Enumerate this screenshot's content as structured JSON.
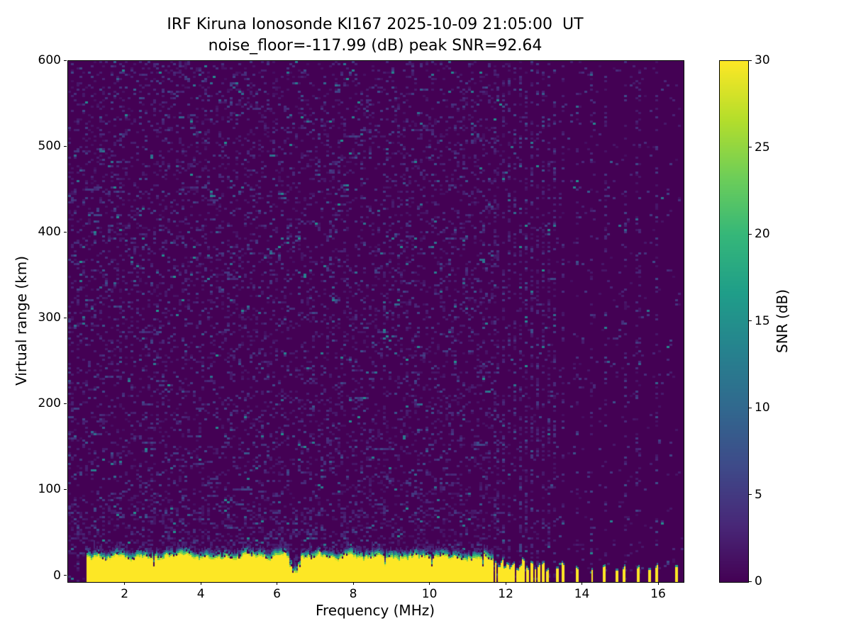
{
  "chart_data": {
    "type": "heatmap",
    "title": "IRF Kiruna Ionosonde KI167 2025-10-09 21:05:00  UT",
    "subtitle": "noise_floor=-117.99 (dB) peak SNR=92.64",
    "station": "IRF Kiruna Ionosonde KI167",
    "timestamp_ut": "2025-10-09 21:05:00 UT",
    "noise_floor_db": -117.99,
    "peak_snr_db": 92.64,
    "xlabel": "Frequency (MHz)",
    "ylabel": "Virtual range (km)",
    "xlim": [
      0.5,
      16.65
    ],
    "ylim": [
      -7,
      600
    ],
    "xticks": [
      2,
      4,
      6,
      8,
      10,
      12,
      14,
      16
    ],
    "yticks": [
      0,
      100,
      200,
      300,
      400,
      500,
      600
    ],
    "colorbar": {
      "label": "SNR (dB)",
      "colormap": "viridis",
      "range": [
        0,
        30
      ],
      "ticks": [
        0,
        5,
        10,
        15,
        20,
        25,
        30
      ]
    },
    "features": {
      "ground_return": {
        "freq_range_mhz": [
          1.0,
          11.68
        ],
        "top_km_range": [
          14,
          29
        ],
        "snr_db": 30
      },
      "notch_freq_mhz": 6.45,
      "background_noise_snr_db": [
        0,
        8
      ],
      "noise_stripe_freqs_mhz": [
        11.75,
        11.9,
        12.05,
        12.2,
        12.35,
        12.5,
        12.65,
        12.8,
        12.95,
        13.1,
        13.25,
        13.5,
        13.85,
        14.25,
        14.6,
        15.1,
        15.45,
        15.95
      ],
      "intermittent_stripes": [
        [
          11.72,
          14
        ],
        [
          11.8,
          10
        ],
        [
          11.88,
          16
        ],
        [
          11.96,
          8
        ],
        [
          12.04,
          15
        ],
        [
          12.12,
          9
        ],
        [
          12.2,
          13
        ],
        [
          12.28,
          7
        ],
        [
          12.36,
          12
        ],
        [
          12.46,
          16
        ],
        [
          12.56,
          8
        ],
        [
          12.66,
          13
        ],
        [
          12.76,
          9
        ],
        [
          12.86,
          11
        ],
        [
          12.98,
          14
        ],
        [
          13.08,
          7
        ],
        [
          13.35,
          10
        ],
        [
          13.5,
          13
        ],
        [
          13.85,
          9
        ],
        [
          14.25,
          8
        ],
        [
          14.55,
          12
        ],
        [
          14.9,
          7
        ],
        [
          15.1,
          10
        ],
        [
          15.45,
          9
        ],
        [
          15.75,
          7
        ],
        [
          15.95,
          11
        ],
        [
          16.45,
          13
        ]
      ]
    }
  }
}
